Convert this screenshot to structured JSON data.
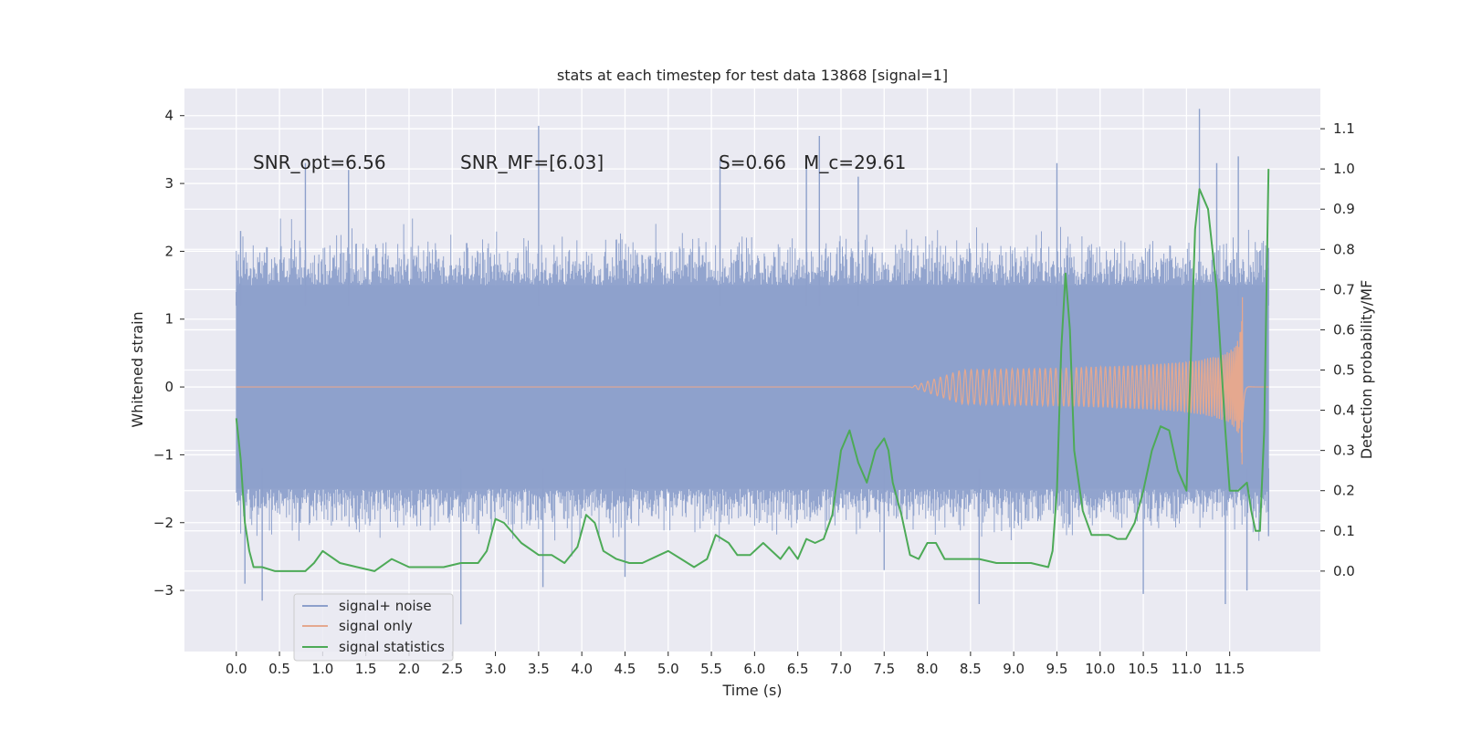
{
  "chart_data": {
    "type": "line",
    "title": "stats at each timestep for test data 13868 [signal=1]",
    "xlabel": "Time (s)",
    "ylabel": "Whitened strain",
    "y2label": "Detection probability/MF",
    "xlim": [
      -0.6,
      12.55
    ],
    "ylim": [
      -3.9,
      4.4
    ],
    "y2lim": [
      -0.2,
      1.2
    ],
    "xticks": [
      0.0,
      0.5,
      1.0,
      1.5,
      2.0,
      2.5,
      3.0,
      3.5,
      4.0,
      4.5,
      5.0,
      5.5,
      6.0,
      6.5,
      7.0,
      7.5,
      8.0,
      8.5,
      9.0,
      9.5,
      10.0,
      10.5,
      11.0,
      11.5
    ],
    "xtick_labels": [
      "0.0",
      "0.5",
      "1.0",
      "1.5",
      "2.0",
      "2.5",
      "3.0",
      "3.5",
      "4.0",
      "4.5",
      "5.0",
      "5.5",
      "6.0",
      "6.5",
      "7.0",
      "7.5",
      "8.0",
      "8.5",
      "9.0",
      "9.5",
      "10.0",
      "10.5",
      "11.0",
      "11.5"
    ],
    "yticks": [
      4,
      3,
      2,
      1,
      0,
      -1,
      -2,
      -3
    ],
    "ytick_labels": [
      "4",
      "3",
      "2",
      "1",
      "0",
      "−1",
      "−2",
      "−3"
    ],
    "y2ticks": [
      1.1,
      1.0,
      0.9,
      0.8,
      0.7,
      0.6,
      0.5,
      0.4,
      0.3,
      0.2,
      0.1,
      0.0
    ],
    "y2tick_labels": [
      "1.1",
      "1.0",
      "0.9",
      "0.8",
      "0.7",
      "0.6",
      "0.5",
      "0.4",
      "0.3",
      "0.2",
      "0.1",
      "0.0"
    ],
    "grid": true,
    "legend_position": "lower-left",
    "annotations": [
      {
        "text": "SNR_opt=6.56",
        "x": 0.2,
        "y": 3.32
      },
      {
        "text": "SNR_MF=[6.03]",
        "x": 2.6,
        "y": 3.32
      },
      {
        "text": "S=0.66   M_c=29.61",
        "x": 5.6,
        "y": 3.32
      }
    ],
    "series": [
      {
        "name": "signal+ noise",
        "color": "#8da0cb",
        "axis": "left",
        "description": "whitened strain, noise band roughly within ±2 with spikes up to 4.1 at t=11.15 and down to -3.5 at t=2.6",
        "envelope_x": [
          0.0,
          11.95
        ],
        "typical_range": [
          -1.9,
          2.2
        ],
        "peaks": [
          {
            "x": 0.0,
            "y": 1.4
          },
          {
            "x": 0.05,
            "y": 2.3
          },
          {
            "x": 0.8,
            "y": 3.3
          },
          {
            "x": 1.3,
            "y": 3.2
          },
          {
            "x": 3.5,
            "y": 3.85
          },
          {
            "x": 5.6,
            "y": 3.35
          },
          {
            "x": 6.6,
            "y": 3.4
          },
          {
            "x": 6.75,
            "y": 3.7
          },
          {
            "x": 7.2,
            "y": 3.1
          },
          {
            "x": 9.5,
            "y": 3.3
          },
          {
            "x": 11.15,
            "y": 4.1
          },
          {
            "x": 11.35,
            "y": 3.3
          },
          {
            "x": 11.6,
            "y": 3.4
          },
          {
            "x": 11.95,
            "y": 2.05
          }
        ],
        "troughs": [
          {
            "x": 0.1,
            "y": -2.9
          },
          {
            "x": 0.3,
            "y": -3.15
          },
          {
            "x": 2.6,
            "y": -3.5
          },
          {
            "x": 3.55,
            "y": -2.95
          },
          {
            "x": 4.5,
            "y": -2.8
          },
          {
            "x": 7.5,
            "y": -2.7
          },
          {
            "x": 8.6,
            "y": -3.2
          },
          {
            "x": 10.5,
            "y": -3.05
          },
          {
            "x": 11.45,
            "y": -3.2
          },
          {
            "x": 11.7,
            "y": -3.0
          },
          {
            "x": 11.95,
            "y": -2.2
          }
        ]
      },
      {
        "name": "signal only",
        "color": "#e5a88f",
        "axis": "left",
        "description": "chirp, flat at 0 until ~8 s then growing oscillation, peaking near t=11.65",
        "chirp": {
          "start": 7.8,
          "merger": 11.65,
          "peak_amplitude": 1.45,
          "end": 11.95
        }
      },
      {
        "name": "signal statistics",
        "color": "#4daa57",
        "axis": "right",
        "x": [
          0.0,
          0.05,
          0.1,
          0.15,
          0.2,
          0.3,
          0.45,
          0.6,
          0.8,
          0.9,
          1.0,
          1.2,
          1.4,
          1.6,
          1.8,
          2.0,
          2.2,
          2.4,
          2.6,
          2.8,
          2.9,
          3.0,
          3.1,
          3.3,
          3.5,
          3.65,
          3.8,
          3.95,
          4.05,
          4.15,
          4.25,
          4.4,
          4.55,
          4.7,
          4.9,
          5.0,
          5.15,
          5.3,
          5.45,
          5.55,
          5.7,
          5.8,
          5.95,
          6.1,
          6.3,
          6.4,
          6.5,
          6.6,
          6.7,
          6.8,
          6.9,
          7.0,
          7.1,
          7.2,
          7.3,
          7.4,
          7.5,
          7.55,
          7.6,
          7.7,
          7.8,
          7.9,
          8.0,
          8.1,
          8.2,
          8.4,
          8.6,
          8.8,
          9.0,
          9.2,
          9.4,
          9.45,
          9.5,
          9.55,
          9.6,
          9.65,
          9.7,
          9.8,
          9.9,
          10.0,
          10.1,
          10.2,
          10.3,
          10.4,
          10.5,
          10.6,
          10.7,
          10.8,
          10.9,
          11.0,
          11.1,
          11.15,
          11.25,
          11.35,
          11.45,
          11.5,
          11.6,
          11.7,
          11.75,
          11.8,
          11.85,
          11.9,
          11.95
        ],
        "values": [
          0.38,
          0.28,
          0.12,
          0.05,
          0.01,
          0.01,
          0.0,
          0.0,
          0.0,
          0.02,
          0.05,
          0.02,
          0.01,
          0.0,
          0.03,
          0.01,
          0.01,
          0.01,
          0.02,
          0.02,
          0.05,
          0.13,
          0.12,
          0.07,
          0.04,
          0.04,
          0.02,
          0.06,
          0.14,
          0.12,
          0.05,
          0.03,
          0.02,
          0.02,
          0.04,
          0.05,
          0.03,
          0.01,
          0.03,
          0.09,
          0.07,
          0.04,
          0.04,
          0.07,
          0.03,
          0.06,
          0.03,
          0.08,
          0.07,
          0.08,
          0.14,
          0.3,
          0.35,
          0.27,
          0.22,
          0.3,
          0.33,
          0.3,
          0.22,
          0.14,
          0.04,
          0.03,
          0.07,
          0.07,
          0.03,
          0.03,
          0.03,
          0.02,
          0.02,
          0.02,
          0.01,
          0.05,
          0.2,
          0.55,
          0.74,
          0.6,
          0.3,
          0.15,
          0.09,
          0.09,
          0.09,
          0.08,
          0.08,
          0.12,
          0.2,
          0.3,
          0.36,
          0.35,
          0.25,
          0.2,
          0.85,
          0.95,
          0.9,
          0.7,
          0.35,
          0.2,
          0.2,
          0.22,
          0.15,
          0.1,
          0.1,
          0.35,
          1.0
        ]
      }
    ]
  }
}
